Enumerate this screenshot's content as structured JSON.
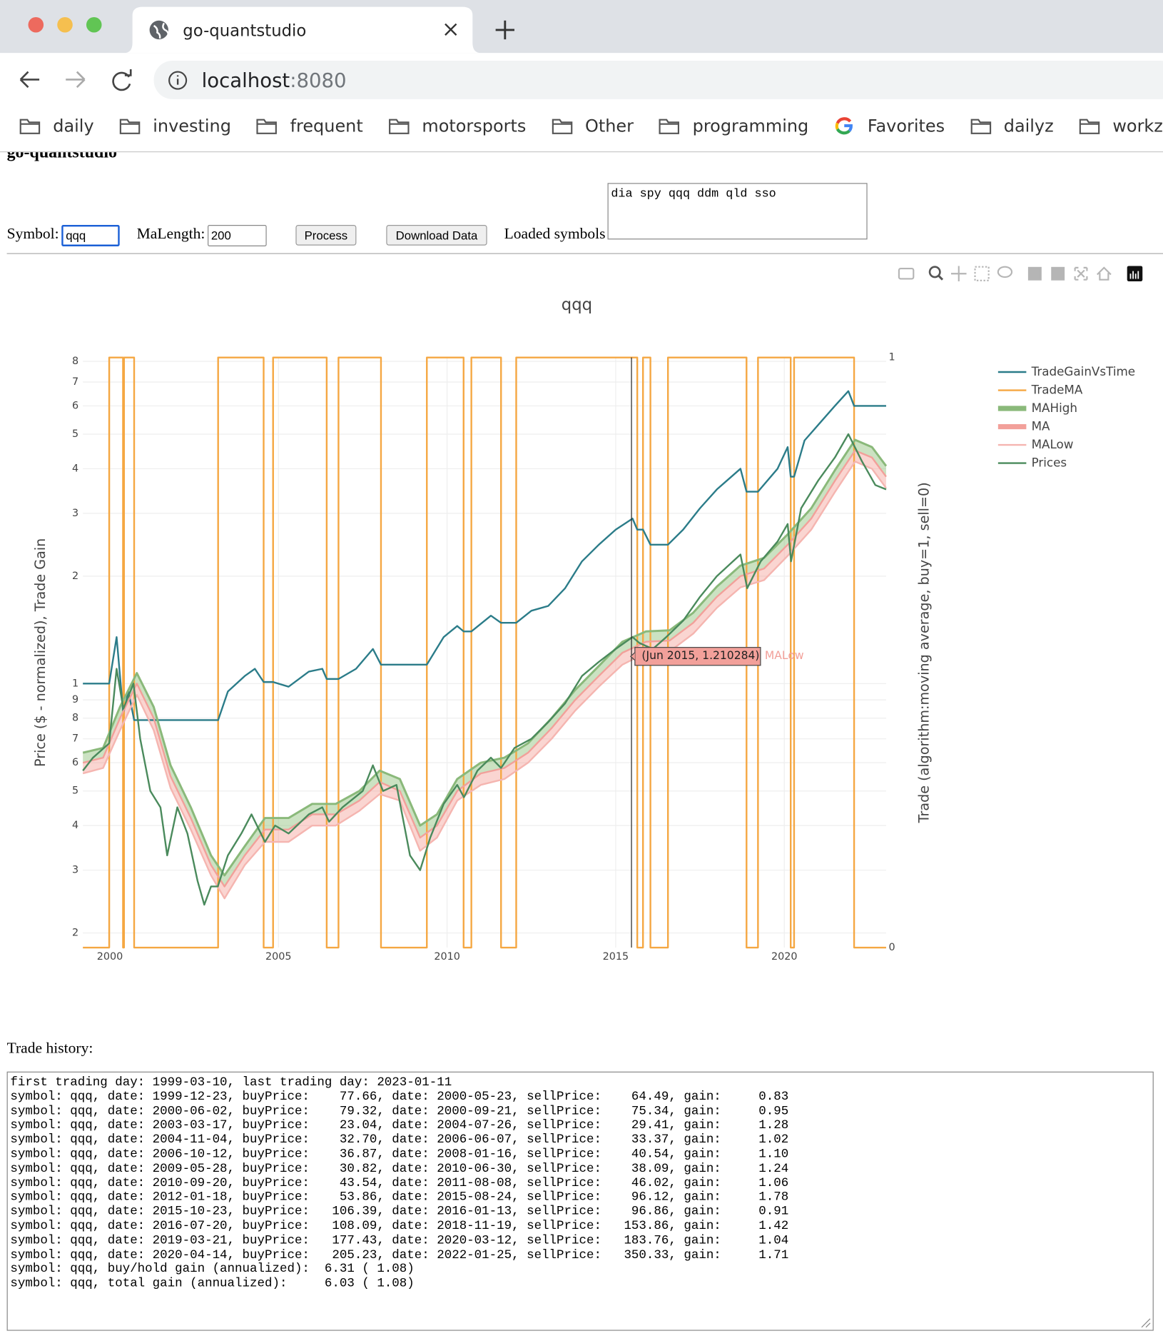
{
  "browser": {
    "tab_title": "go-quantstudio",
    "url_host": "localhost",
    "url_port": ":8080",
    "bookmarks": [
      {
        "label": "daily",
        "icon": "folder"
      },
      {
        "label": "investing",
        "icon": "folder"
      },
      {
        "label": "frequent",
        "icon": "folder"
      },
      {
        "label": "motorsports",
        "icon": "folder"
      },
      {
        "label": "Other",
        "icon": "folder"
      },
      {
        "label": "programming",
        "icon": "folder"
      },
      {
        "label": "Favorites",
        "icon": "google"
      },
      {
        "label": "dailyz",
        "icon": "folder"
      },
      {
        "label": "workz",
        "icon": "folder"
      }
    ]
  },
  "page": {
    "heading": "go-quantstudio",
    "symbol_label": "Symbol:",
    "symbol_value": "qqq",
    "malength_label": "MaLength:",
    "malength_value": "200",
    "process_button": "Process",
    "download_button": "Download Data",
    "loaded_label": "Loaded symbols",
    "loaded_value": "dia spy qqq ddm qld sso",
    "trade_history_label": "Trade history:",
    "trade_history": [
      "first trading day: 1999-03-10, last trading day: 2023-01-11",
      "symbol: qqq, date: 1999-12-23, buyPrice:    77.66, date: 2000-05-23, sellPrice:    64.49, gain:     0.83",
      "symbol: qqq, date: 2000-06-02, buyPrice:    79.32, date: 2000-09-21, sellPrice:    75.34, gain:     0.95",
      "symbol: qqq, date: 2003-03-17, buyPrice:    23.04, date: 2004-07-26, sellPrice:    29.41, gain:     1.28",
      "symbol: qqq, date: 2004-11-04, buyPrice:    32.70, date: 2006-06-07, sellPrice:    33.37, gain:     1.02",
      "symbol: qqq, date: 2006-10-12, buyPrice:    36.87, date: 2008-01-16, sellPrice:    40.54, gain:     1.10",
      "symbol: qqq, date: 2009-05-28, buyPrice:    30.82, date: 2010-06-30, sellPrice:    38.09, gain:     1.24",
      "symbol: qqq, date: 2010-09-20, buyPrice:    43.54, date: 2011-08-08, sellPrice:    46.02, gain:     1.06",
      "symbol: qqq, date: 2012-01-18, buyPrice:    53.86, date: 2015-08-24, sellPrice:    96.12, gain:     1.78",
      "symbol: qqq, date: 2015-10-23, buyPrice:   106.39, date: 2016-01-13, sellPrice:    96.86, gain:     0.91",
      "symbol: qqq, date: 2016-07-20, buyPrice:   108.09, date: 2018-11-19, sellPrice:   153.86, gain:     1.42",
      "symbol: qqq, date: 2019-03-21, buyPrice:   177.43, date: 2020-03-12, sellPrice:   183.76, gain:     1.04",
      "symbol: qqq, date: 2020-04-14, buyPrice:   205.23, date: 2022-01-25, sellPrice:   350.33, gain:     1.71",
      "symbol: qqq, buy/hold gain (annualized):  6.31 ( 1.08)",
      "symbol: qqq, total gain (annualized):     6.03 ( 1.08)"
    ]
  },
  "chart_data": {
    "type": "line",
    "title": "qqq",
    "y_label": "Price ($ - normalized), Trade Gain",
    "y2_label": "Trade (algorithm:moving average, buy=1, sell=0)",
    "log_y": true,
    "grid": true,
    "xlim": [
      1999.2,
      2023.02
    ],
    "xticks": [
      2000,
      2005,
      2010,
      2015,
      2020
    ],
    "ylim": [
      0.182,
      8.2
    ],
    "yticks": [
      {
        "value": 0.2,
        "label": "2"
      },
      {
        "value": 0.3,
        "label": "3"
      },
      {
        "value": 0.4,
        "label": "4"
      },
      {
        "value": 0.5,
        "label": "5"
      },
      {
        "value": 0.6,
        "label": "6"
      },
      {
        "value": 0.7,
        "label": "7"
      },
      {
        "value": 0.8,
        "label": "8"
      },
      {
        "value": 0.9,
        "label": "9"
      },
      1,
      2,
      3,
      4,
      5,
      6,
      7,
      8
    ],
    "y2lim": [
      0,
      1
    ],
    "y2ticks": [
      0,
      1
    ],
    "hover": {
      "text": "(Jun 2015, 1.210284)",
      "series": "MALow"
    },
    "series": [
      {
        "name": "TradeGainVsTime",
        "color": "#2b7c89",
        "x": [
          1999.2,
          1999.98,
          2000.2,
          2000.39,
          2000.42,
          2000.55,
          2000.72,
          2003.21,
          2003.5,
          2004.0,
          2004.3,
          2004.56,
          2004.84,
          2005.3,
          2005.9,
          2006.3,
          2006.43,
          2006.78,
          2007.3,
          2007.8,
          2008.04,
          2009.4,
          2009.9,
          2010.3,
          2010.49,
          2010.72,
          2011.3,
          2011.6,
          2012.05,
          2012.5,
          2013.0,
          2013.5,
          2014.0,
          2014.5,
          2015.0,
          2015.5,
          2015.64,
          2015.81,
          2016.03,
          2016.55,
          2017.0,
          2017.5,
          2018.0,
          2018.7,
          2018.88,
          2019.22,
          2019.8,
          2020.1,
          2020.19,
          2020.29,
          2020.6,
          2021.0,
          2021.5,
          2021.9,
          2022.07,
          2023.02
        ],
        "values": [
          1.0,
          1.0,
          1.35,
          0.84,
          0.84,
          0.95,
          0.79,
          0.79,
          0.95,
          1.05,
          1.1,
          1.01,
          1.01,
          0.98,
          1.08,
          1.1,
          1.03,
          1.03,
          1.1,
          1.25,
          1.13,
          1.13,
          1.35,
          1.45,
          1.4,
          1.4,
          1.55,
          1.48,
          1.48,
          1.6,
          1.65,
          1.85,
          2.2,
          2.45,
          2.7,
          2.9,
          2.7,
          2.7,
          2.45,
          2.45,
          2.7,
          3.1,
          3.5,
          4.0,
          3.45,
          3.45,
          4.0,
          4.6,
          3.8,
          3.8,
          4.8,
          5.3,
          6.0,
          6.6,
          6.0,
          6.0
        ]
      },
      {
        "name": "TradeMA",
        "color": "#f5a742",
        "axis": "y2",
        "x": [
          1999.2,
          1999.98,
          1999.98,
          2000.39,
          2000.39,
          2000.42,
          2000.42,
          2000.72,
          2000.72,
          2003.21,
          2003.21,
          2004.56,
          2004.56,
          2004.84,
          2004.84,
          2006.43,
          2006.43,
          2006.78,
          2006.78,
          2008.04,
          2008.04,
          2009.4,
          2009.4,
          2010.49,
          2010.49,
          2010.72,
          2010.72,
          2011.6,
          2011.6,
          2012.05,
          2012.05,
          2015.64,
          2015.64,
          2015.81,
          2015.81,
          2016.03,
          2016.03,
          2016.55,
          2016.55,
          2018.88,
          2018.88,
          2019.22,
          2019.22,
          2020.19,
          2020.19,
          2020.29,
          2020.29,
          2022.07,
          2022.07,
          2023.02
        ],
        "values": [
          0,
          0,
          1,
          1,
          0,
          0,
          1,
          1,
          0,
          0,
          1,
          1,
          0,
          0,
          1,
          1,
          0,
          0,
          1,
          1,
          0,
          0,
          1,
          1,
          0,
          0,
          1,
          1,
          0,
          0,
          1,
          1,
          0,
          0,
          1,
          1,
          0,
          0,
          1,
          1,
          0,
          0,
          1,
          1,
          0,
          0,
          1,
          1,
          0,
          0
        ]
      },
      {
        "name": "MAHigh",
        "color": "#8ab97a",
        "band_color": "rgba(140,190,120,0.45)",
        "x": [
          1999.2,
          1999.8,
          2000.3,
          2000.8,
          2001.3,
          2001.8,
          2002.4,
          2003.0,
          2003.4,
          2004.0,
          2004.6,
          2005.3,
          2006.0,
          2006.7,
          2007.4,
          2008.0,
          2008.6,
          2009.2,
          2009.7,
          2010.3,
          2011.0,
          2011.7,
          2012.4,
          2013.1,
          2013.8,
          2014.5,
          2015.2,
          2015.9,
          2016.6,
          2017.3,
          2018.0,
          2018.7,
          2019.4,
          2020.1,
          2020.8,
          2021.5,
          2022.1,
          2022.6,
          2023.02
        ],
        "values": [
          0.64,
          0.66,
          0.86,
          1.07,
          0.86,
          0.59,
          0.45,
          0.33,
          0.29,
          0.35,
          0.42,
          0.42,
          0.46,
          0.46,
          0.5,
          0.57,
          0.54,
          0.4,
          0.43,
          0.54,
          0.6,
          0.62,
          0.68,
          0.8,
          0.96,
          1.12,
          1.31,
          1.4,
          1.41,
          1.58,
          1.87,
          2.14,
          2.25,
          2.62,
          3.1,
          3.96,
          4.82,
          4.6,
          4.07
        ]
      },
      {
        "name": "MA",
        "color": "#f2a09a",
        "band_color": "rgba(242,150,140,0.4)",
        "x": [
          1999.2,
          1999.8,
          2000.3,
          2000.8,
          2001.3,
          2001.8,
          2002.4,
          2003.0,
          2003.4,
          2004.0,
          2004.6,
          2005.3,
          2006.0,
          2006.7,
          2007.4,
          2008.0,
          2008.6,
          2009.2,
          2009.7,
          2010.3,
          2011.0,
          2011.7,
          2012.4,
          2013.1,
          2013.8,
          2014.5,
          2015.2,
          2015.9,
          2016.6,
          2017.3,
          2018.0,
          2018.7,
          2019.4,
          2020.1,
          2020.8,
          2021.5,
          2022.1,
          2022.6,
          2023.02
        ],
        "values": [
          0.6,
          0.62,
          0.8,
          1.0,
          0.8,
          0.55,
          0.42,
          0.31,
          0.27,
          0.33,
          0.39,
          0.39,
          0.43,
          0.43,
          0.47,
          0.53,
          0.5,
          0.37,
          0.4,
          0.5,
          0.56,
          0.58,
          0.64,
          0.75,
          0.9,
          1.05,
          1.22,
          1.31,
          1.32,
          1.48,
          1.75,
          2.0,
          2.1,
          2.45,
          2.9,
          3.7,
          4.5,
          4.3,
          3.8
        ]
      },
      {
        "name": "MALow",
        "color": "#f5b5b0",
        "x": [
          1999.2,
          1999.8,
          2000.3,
          2000.8,
          2001.3,
          2001.8,
          2002.4,
          2003.0,
          2003.4,
          2004.0,
          2004.6,
          2005.3,
          2006.0,
          2006.7,
          2007.4,
          2008.0,
          2008.6,
          2009.2,
          2009.7,
          2010.3,
          2011.0,
          2011.7,
          2012.4,
          2013.1,
          2013.8,
          2014.5,
          2015.2,
          2015.9,
          2016.6,
          2017.3,
          2018.0,
          2018.7,
          2019.4,
          2020.1,
          2020.8,
          2021.5,
          2022.1,
          2022.6,
          2023.02
        ],
        "values": [
          0.56,
          0.58,
          0.74,
          0.93,
          0.74,
          0.51,
          0.39,
          0.29,
          0.25,
          0.31,
          0.36,
          0.36,
          0.4,
          0.4,
          0.44,
          0.49,
          0.47,
          0.34,
          0.37,
          0.47,
          0.52,
          0.54,
          0.6,
          0.7,
          0.84,
          0.98,
          1.13,
          1.22,
          1.23,
          1.38,
          1.63,
          1.86,
          1.95,
          2.28,
          2.7,
          3.44,
          4.19,
          4.0,
          3.53
        ]
      },
      {
        "name": "Prices",
        "color": "#4a8a5c",
        "x": [
          1999.2,
          1999.5,
          1999.98,
          2000.2,
          2000.4,
          2000.7,
          2000.9,
          2001.2,
          2001.5,
          2001.7,
          2002.0,
          2002.3,
          2002.6,
          2002.8,
          2003.0,
          2003.2,
          2003.5,
          2003.9,
          2004.2,
          2004.6,
          2004.9,
          2005.3,
          2005.9,
          2006.3,
          2006.5,
          2006.9,
          2007.5,
          2007.8,
          2008.1,
          2008.5,
          2008.9,
          2009.2,
          2009.5,
          2009.9,
          2010.3,
          2010.5,
          2010.9,
          2011.3,
          2011.6,
          2012.0,
          2012.5,
          2013.0,
          2013.5,
          2014.0,
          2014.5,
          2015.0,
          2015.5,
          2015.7,
          2016.1,
          2016.5,
          2017.0,
          2017.5,
          2018.0,
          2018.7,
          2018.9,
          2019.3,
          2019.8,
          2020.1,
          2020.2,
          2020.5,
          2021.0,
          2021.5,
          2021.9,
          2022.3,
          2022.7,
          2023.02
        ],
        "values": [
          0.57,
          0.62,
          0.68,
          1.1,
          0.85,
          1.0,
          0.7,
          0.5,
          0.45,
          0.33,
          0.45,
          0.38,
          0.28,
          0.24,
          0.27,
          0.27,
          0.33,
          0.38,
          0.43,
          0.36,
          0.4,
          0.38,
          0.43,
          0.45,
          0.41,
          0.45,
          0.5,
          0.59,
          0.5,
          0.52,
          0.33,
          0.3,
          0.37,
          0.46,
          0.52,
          0.48,
          0.57,
          0.62,
          0.58,
          0.66,
          0.7,
          0.78,
          0.88,
          1.05,
          1.15,
          1.25,
          1.35,
          1.3,
          1.25,
          1.35,
          1.5,
          1.75,
          2.0,
          2.3,
          1.85,
          2.2,
          2.5,
          2.8,
          2.2,
          3.1,
          3.7,
          4.3,
          5.0,
          4.2,
          3.6,
          3.5
        ]
      }
    ]
  }
}
